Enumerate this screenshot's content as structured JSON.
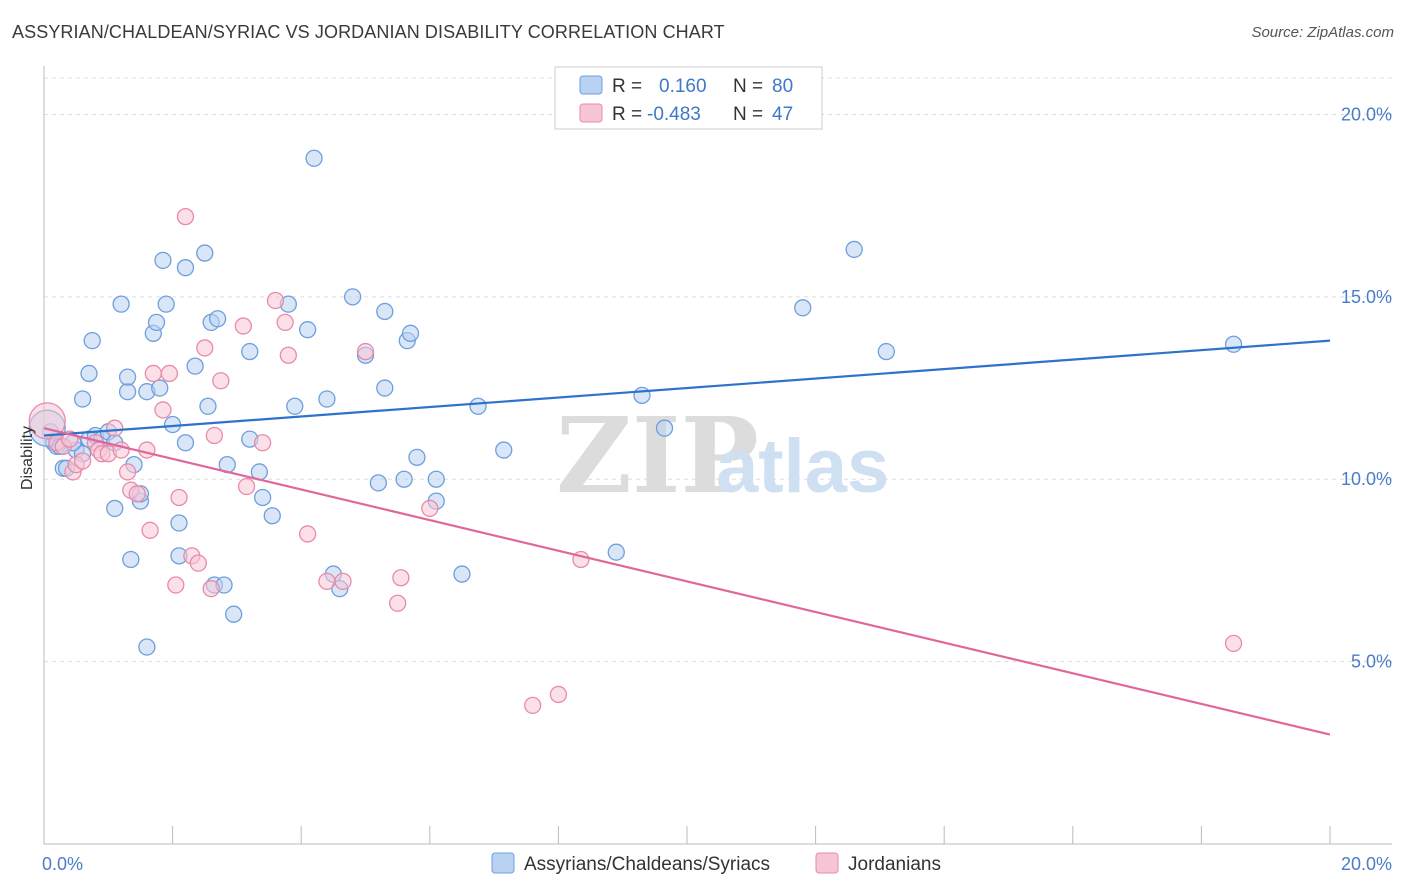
{
  "title": "ASSYRIAN/CHALDEAN/SYRIAC VS JORDANIAN DISABILITY CORRELATION CHART",
  "source": "Source: ZipAtlas.com",
  "watermark": {
    "zip": "ZIP",
    "atlas": "atlas"
  },
  "colors": {
    "blue_fill": "#b9d2f2",
    "blue_stroke": "#6e9fdc",
    "blue_line": "#2f72cc",
    "pink_fill": "#f7c6d6",
    "pink_stroke": "#e88aab",
    "pink_line": "#e0679a",
    "grid": "#dddddd",
    "tick_text": "#4a7cc9"
  },
  "legend": {
    "rows": [
      {
        "r_label": "R =",
        "r_value": "0.160",
        "n_label": "N =",
        "n_value": "80"
      },
      {
        "r_label": "R =",
        "r_value": "-0.483",
        "n_label": "N =",
        "n_value": "47"
      }
    ]
  },
  "chart_data": {
    "type": "scatter",
    "title": "ASSYRIAN/CHALDEAN/SYRIAC VS JORDANIAN DISABILITY CORRELATION CHART",
    "xlabel": "",
    "ylabel": "Disability",
    "xlim": [
      0,
      20
    ],
    "ylim": [
      0,
      21
    ],
    "x_tick_labels": [
      "0.0%",
      "20.0%"
    ],
    "y_ticks": [
      5,
      10,
      15,
      20
    ],
    "y_tick_labels": [
      "5.0%",
      "10.0%",
      "15.0%",
      "20.0%"
    ],
    "grid": true,
    "legend_position": "bottom-center",
    "series": [
      {
        "name": "Assyrians/Chaldeans/Syriacs",
        "color": "#b9d2f2",
        "trend": {
          "x": [
            0,
            20
          ],
          "y": [
            11.2,
            13.8
          ]
        },
        "points": [
          [
            0.1,
            11.3
          ],
          [
            0.15,
            11.0
          ],
          [
            0.2,
            10.9
          ],
          [
            0.3,
            10.3
          ],
          [
            0.35,
            10.3
          ],
          [
            0.5,
            10.8
          ],
          [
            0.6,
            10.7
          ],
          [
            0.7,
            11.1
          ],
          [
            0.8,
            11.2
          ],
          [
            0.9,
            11.1
          ],
          [
            1.0,
            11.3
          ],
          [
            1.1,
            11.0
          ],
          [
            0.6,
            12.2
          ],
          [
            0.7,
            12.9
          ],
          [
            0.75,
            13.8
          ],
          [
            1.2,
            14.8
          ],
          [
            1.3,
            12.4
          ],
          [
            1.3,
            12.8
          ],
          [
            1.1,
            9.2
          ],
          [
            1.35,
            7.8
          ],
          [
            1.4,
            10.4
          ],
          [
            1.5,
            9.4
          ],
          [
            1.5,
            9.6
          ],
          [
            1.6,
            12.4
          ],
          [
            1.7,
            14.0
          ],
          [
            1.75,
            14.3
          ],
          [
            1.8,
            12.5
          ],
          [
            1.85,
            16.0
          ],
          [
            1.9,
            14.8
          ],
          [
            2.0,
            11.5
          ],
          [
            2.1,
            7.9
          ],
          [
            2.1,
            8.8
          ],
          [
            2.2,
            11.0
          ],
          [
            2.2,
            15.8
          ],
          [
            2.35,
            13.1
          ],
          [
            2.5,
            16.2
          ],
          [
            2.55,
            12.0
          ],
          [
            2.6,
            14.3
          ],
          [
            2.7,
            14.4
          ],
          [
            2.65,
            7.1
          ],
          [
            2.8,
            7.1
          ],
          [
            2.85,
            10.4
          ],
          [
            2.95,
            6.3
          ],
          [
            3.2,
            13.5
          ],
          [
            3.2,
            11.1
          ],
          [
            3.35,
            10.2
          ],
          [
            3.4,
            9.5
          ],
          [
            3.55,
            9.0
          ],
          [
            3.8,
            14.8
          ],
          [
            3.9,
            12.0
          ],
          [
            4.1,
            14.1
          ],
          [
            4.2,
            18.8
          ],
          [
            4.4,
            12.2
          ],
          [
            4.5,
            7.4
          ],
          [
            4.6,
            7.0
          ],
          [
            4.8,
            15.0
          ],
          [
            5.0,
            13.4
          ],
          [
            5.2,
            9.9
          ],
          [
            5.3,
            12.5
          ],
          [
            5.3,
            14.6
          ],
          [
            5.6,
            10.0
          ],
          [
            5.65,
            13.8
          ],
          [
            5.7,
            14.0
          ],
          [
            5.8,
            10.6
          ],
          [
            6.1,
            10.0
          ],
          [
            6.1,
            9.4
          ],
          [
            6.5,
            7.4
          ],
          [
            6.75,
            12.0
          ],
          [
            7.15,
            10.8
          ],
          [
            8.9,
            8.0
          ],
          [
            9.3,
            12.3
          ],
          [
            9.65,
            11.4
          ],
          [
            11.8,
            14.7
          ],
          [
            12.6,
            16.3
          ],
          [
            13.1,
            13.5
          ],
          [
            18.5,
            13.7
          ],
          [
            0.05,
            11.4
          ],
          [
            0.25,
            10.9
          ],
          [
            0.45,
            11.0
          ],
          [
            1.6,
            5.4
          ]
        ]
      },
      {
        "name": "Jordanians",
        "color": "#f7c6d6",
        "trend": {
          "x": [
            0,
            20
          ],
          "y": [
            11.4,
            3.0
          ]
        },
        "points": [
          [
            0.05,
            11.6
          ],
          [
            0.2,
            11.0
          ],
          [
            0.3,
            10.9
          ],
          [
            0.4,
            11.1
          ],
          [
            0.45,
            10.2
          ],
          [
            0.5,
            10.4
          ],
          [
            0.8,
            11.0
          ],
          [
            0.85,
            10.8
          ],
          [
            0.9,
            10.7
          ],
          [
            1.0,
            10.7
          ],
          [
            1.1,
            11.4
          ],
          [
            1.2,
            10.8
          ],
          [
            1.3,
            10.2
          ],
          [
            1.35,
            9.7
          ],
          [
            1.45,
            9.6
          ],
          [
            1.6,
            10.8
          ],
          [
            1.65,
            8.6
          ],
          [
            1.7,
            12.9
          ],
          [
            1.85,
            11.9
          ],
          [
            1.95,
            12.9
          ],
          [
            2.05,
            7.1
          ],
          [
            2.1,
            9.5
          ],
          [
            2.2,
            17.2
          ],
          [
            2.3,
            7.9
          ],
          [
            2.4,
            7.7
          ],
          [
            2.5,
            13.6
          ],
          [
            2.6,
            7.0
          ],
          [
            2.65,
            11.2
          ],
          [
            2.75,
            12.7
          ],
          [
            3.1,
            14.2
          ],
          [
            3.15,
            9.8
          ],
          [
            3.4,
            11.0
          ],
          [
            3.6,
            14.9
          ],
          [
            3.75,
            14.3
          ],
          [
            3.8,
            13.4
          ],
          [
            4.1,
            8.5
          ],
          [
            4.4,
            7.2
          ],
          [
            4.65,
            7.2
          ],
          [
            5.0,
            13.5
          ],
          [
            5.5,
            6.6
          ],
          [
            5.55,
            7.3
          ],
          [
            6.0,
            9.2
          ],
          [
            7.6,
            3.8
          ],
          [
            8.0,
            4.1
          ],
          [
            8.35,
            7.8
          ],
          [
            18.5,
            5.5
          ],
          [
            0.6,
            10.5
          ]
        ]
      }
    ]
  }
}
